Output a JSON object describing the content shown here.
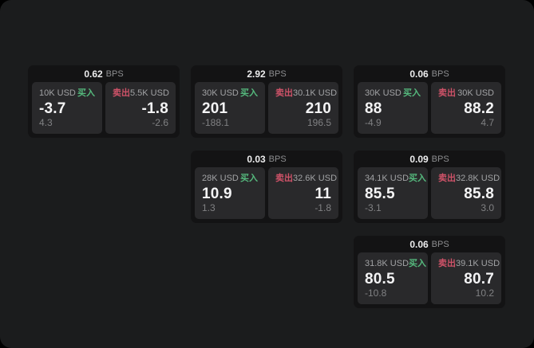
{
  "app": {
    "background": "#1b1c1d",
    "card_background": "#131314",
    "tile_background": "#29292b",
    "accent_green": "#55b97d",
    "accent_red": "#ce5268"
  },
  "labels": {
    "bps_unit": "BPS",
    "buy": "买入",
    "sell": "卖出"
  },
  "cards": [
    {
      "bps": "0.62",
      "buy": {
        "amount": "10K USD",
        "value": "-3.7",
        "change": "4.3"
      },
      "sell": {
        "amount": "5.5K USD",
        "value": "-1.8",
        "change": "-2.6"
      }
    },
    {
      "bps": "2.92",
      "buy": {
        "amount": "30K USD",
        "value": "201",
        "change": "-188.1"
      },
      "sell": {
        "amount": "30.1K USD",
        "value": "210",
        "change": "196.5"
      }
    },
    {
      "bps": "0.06",
      "buy": {
        "amount": "30K USD",
        "value": "88",
        "change": "-4.9"
      },
      "sell": {
        "amount": "30K USD",
        "value": "88.2",
        "change": "4.7"
      }
    },
    {
      "bps": "0.03",
      "buy": {
        "amount": "28K USD",
        "value": "10.9",
        "change": "1.3"
      },
      "sell": {
        "amount": "32.6K USD",
        "value": "11",
        "change": "-1.8"
      }
    },
    {
      "bps": "0.09",
      "buy": {
        "amount": "34.1K USD",
        "value": "85.5",
        "change": "-3.1"
      },
      "sell": {
        "amount": "32.8K USD",
        "value": "85.8",
        "change": "3.0"
      }
    },
    {
      "bps": "0.06",
      "buy": {
        "amount": "31.8K USD",
        "value": "80.5",
        "change": "-10.8"
      },
      "sell": {
        "amount": "39.1K USD",
        "value": "80.7",
        "change": "10.2"
      }
    }
  ]
}
